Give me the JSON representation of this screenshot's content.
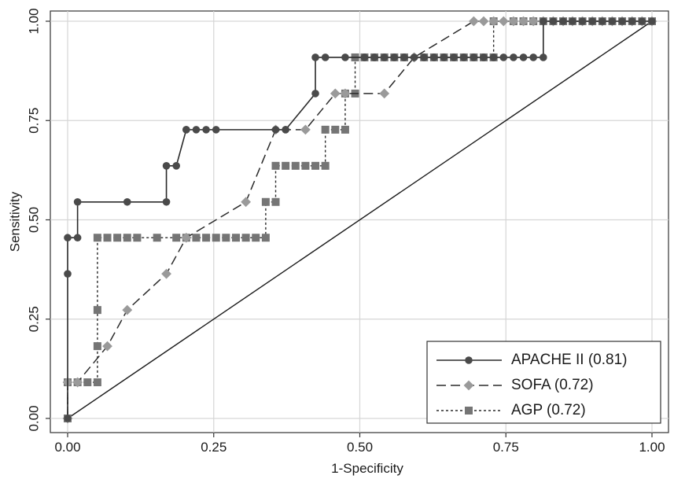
{
  "chart_data": {
    "type": "line",
    "xlabel": "1-Specificity",
    "ylabel": "Sensitivity",
    "xlim": [
      0,
      1
    ],
    "ylim": [
      0,
      1
    ],
    "x_ticks": [
      "0.00",
      "0.25",
      "0.50",
      "0.75",
      "1.00"
    ],
    "y_ticks": [
      "0.00",
      "0.25",
      "0.50",
      "0.75",
      "1.00"
    ],
    "grid": true,
    "legend_position": "bottom-right",
    "reference_line": [
      [
        0,
        0
      ],
      [
        1,
        1
      ]
    ],
    "series": [
      {
        "name": "APACHE II (0.81)",
        "line_style": "solid",
        "marker": "circle",
        "color": "#555555",
        "x": [
          0,
          0,
          0,
          0.017,
          0.017,
          0.102,
          0.169,
          0.169,
          0.186,
          0.203,
          0.203,
          0.22,
          0.237,
          0.254,
          0.356,
          0.373,
          0.373,
          0.424,
          0.424,
          0.441,
          0.475,
          0.508,
          0.525,
          0.542,
          0.559,
          0.576,
          0.593,
          0.61,
          0.627,
          0.644,
          0.661,
          0.678,
          0.695,
          0.712,
          0.729,
          0.746,
          0.763,
          0.78,
          0.797,
          0.814,
          0.814,
          0.831,
          0.848,
          0.864,
          0.881,
          0.898,
          0.915,
          0.932,
          0.949,
          0.966,
          0.983,
          1.0
        ],
        "y": [
          0,
          0.364,
          0.455,
          0.455,
          0.545,
          0.545,
          0.545,
          0.636,
          0.636,
          0.727,
          0.727,
          0.727,
          0.727,
          0.727,
          0.727,
          0.727,
          0.727,
          0.818,
          0.909,
          0.909,
          0.909,
          0.909,
          0.909,
          0.909,
          0.909,
          0.909,
          0.909,
          0.909,
          0.909,
          0.909,
          0.909,
          0.909,
          0.909,
          0.909,
          0.909,
          0.909,
          0.909,
          0.909,
          0.909,
          0.909,
          1.0,
          1.0,
          1.0,
          1.0,
          1.0,
          1.0,
          1.0,
          1.0,
          1.0,
          1.0,
          1.0,
          1.0
        ]
      },
      {
        "name": "SOFA (0.72)",
        "line_style": "dashed",
        "marker": "diamond",
        "color": "#888888",
        "x": [
          0,
          0,
          0.017,
          0.068,
          0.102,
          0.169,
          0.203,
          0.305,
          0.356,
          0.407,
          0.458,
          0.475,
          0.542,
          0.593,
          0.695,
          0.712,
          0.729,
          0.746,
          0.763,
          0.78,
          0.797,
          0.814,
          0.831,
          0.848,
          0.864,
          0.881,
          0.898,
          0.915,
          0.932,
          0.949,
          0.966,
          0.983,
          1.0
        ],
        "y": [
          0,
          0.091,
          0.091,
          0.182,
          0.273,
          0.364,
          0.455,
          0.545,
          0.727,
          0.727,
          0.818,
          0.818,
          0.818,
          0.909,
          1.0,
          1.0,
          1.0,
          1.0,
          1.0,
          1.0,
          1.0,
          1.0,
          1.0,
          1.0,
          1.0,
          1.0,
          1.0,
          1.0,
          1.0,
          1.0,
          1.0,
          1.0,
          1.0
        ]
      },
      {
        "name": "AGP (0.72)",
        "line_style": "dotted",
        "marker": "square",
        "color": "#6e6e6e",
        "x": [
          0,
          0,
          0.017,
          0.034,
          0.051,
          0.051,
          0.051,
          0.051,
          0.068,
          0.085,
          0.102,
          0.119,
          0.153,
          0.186,
          0.203,
          0.22,
          0.237,
          0.254,
          0.271,
          0.288,
          0.305,
          0.322,
          0.339,
          0.339,
          0.356,
          0.356,
          0.373,
          0.39,
          0.407,
          0.424,
          0.441,
          0.441,
          0.458,
          0.475,
          0.475,
          0.492,
          0.492,
          0.508,
          0.525,
          0.542,
          0.559,
          0.576,
          0.61,
          0.627,
          0.644,
          0.661,
          0.678,
          0.695,
          0.712,
          0.729,
          0.729,
          0.763,
          0.78,
          0.797,
          0.814,
          0.831,
          0.848,
          0.864,
          0.881,
          0.898,
          0.915,
          0.932,
          0.949,
          0.966,
          0.983,
          1.0
        ],
        "y": [
          0,
          0.091,
          0.091,
          0.091,
          0.091,
          0.182,
          0.273,
          0.455,
          0.455,
          0.455,
          0.455,
          0.455,
          0.455,
          0.455,
          0.455,
          0.455,
          0.455,
          0.455,
          0.455,
          0.455,
          0.455,
          0.455,
          0.455,
          0.545,
          0.545,
          0.636,
          0.636,
          0.636,
          0.636,
          0.636,
          0.636,
          0.727,
          0.727,
          0.727,
          0.818,
          0.818,
          0.909,
          0.909,
          0.909,
          0.909,
          0.909,
          0.909,
          0.909,
          0.909,
          0.909,
          0.909,
          0.909,
          0.909,
          0.909,
          0.909,
          1.0,
          1.0,
          1.0,
          1.0,
          1.0,
          1.0,
          1.0,
          1.0,
          1.0,
          1.0,
          1.0,
          1.0,
          1.0,
          1.0,
          1.0,
          1.0
        ]
      }
    ]
  }
}
